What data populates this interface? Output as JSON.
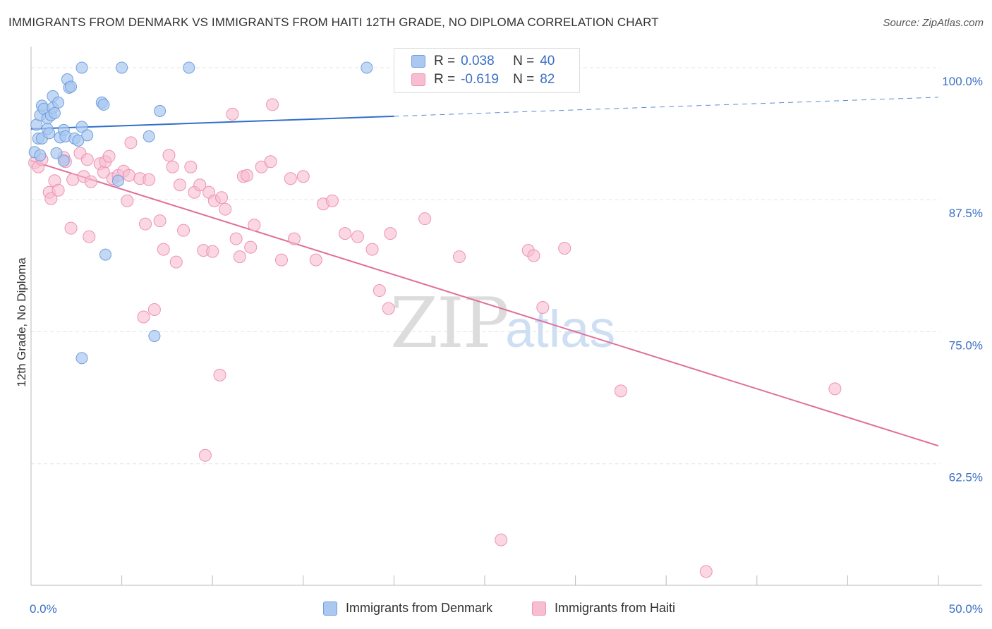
{
  "title": "IMMIGRANTS FROM DENMARK VS IMMIGRANTS FROM HAITI 12TH GRADE, NO DIPLOMA CORRELATION CHART",
  "source": "Source: ZipAtlas.com",
  "watermark": {
    "zip": "ZIP",
    "atlas": "atlas"
  },
  "legend": {
    "r_label": "R =",
    "n_label": "N =",
    "denmark": {
      "r": "0.038",
      "n": "40"
    },
    "haiti": {
      "r": "-0.619",
      "n": "82"
    }
  },
  "bottom_legend": {
    "denmark": "Immigrants from Denmark",
    "haiti": "Immigrants from Haiti"
  },
  "colors": {
    "denmark_fill": "#aac8f0",
    "denmark_stroke": "#6f9fde",
    "denmark_line": "#2f6fcc",
    "haiti_fill": "#f7bdd0",
    "haiti_stroke": "#ee93b3",
    "haiti_line": "#e06f9c",
    "axis_label": "#3a6fc4",
    "grid": "#e4e4e4"
  },
  "chart_data": {
    "type": "scatter",
    "title": "IMMIGRANTS FROM DENMARK VS IMMIGRANTS FROM HAITI 12TH GRADE, NO DIPLOMA CORRELATION CHART",
    "xlabel": "",
    "ylabel": "12th Grade, No Diploma",
    "xlim": [
      0,
      50
    ],
    "ylim": [
      51,
      102
    ],
    "x_tick_labels": [
      {
        "value": 0,
        "label": "0.0%"
      },
      {
        "value": 50,
        "label": "50.0%"
      }
    ],
    "x_minor_ticks": [
      5,
      10,
      15,
      20,
      25,
      30,
      35,
      40,
      45
    ],
    "y_ticks": [
      {
        "value": 100,
        "label": "100.0%"
      },
      {
        "value": 87.5,
        "label": "87.5%"
      },
      {
        "value": 75,
        "label": "75.0%"
      },
      {
        "value": 62.5,
        "label": "62.5%"
      }
    ],
    "series": [
      {
        "name": "Immigrants from Denmark",
        "r": 0.038,
        "n": 40,
        "trend": {
          "x0": 0,
          "y0": 94.2,
          "x1": 20,
          "y1": 95.4,
          "dashed_to_x": 50,
          "dashed_to_y": 97.2
        },
        "points": [
          [
            0.3,
            94.6
          ],
          [
            0.4,
            93.3
          ],
          [
            0.5,
            95.5
          ],
          [
            0.6,
            96.4
          ],
          [
            0.7,
            96.1
          ],
          [
            0.6,
            93.3
          ],
          [
            0.9,
            95.2
          ],
          [
            0.9,
            94.2
          ],
          [
            1.0,
            93.8
          ],
          [
            1.1,
            95.5
          ],
          [
            1.2,
            96.2
          ],
          [
            1.2,
            97.3
          ],
          [
            1.3,
            95.7
          ],
          [
            1.5,
            96.7
          ],
          [
            1.4,
            91.9
          ],
          [
            1.6,
            93.4
          ],
          [
            1.8,
            94.1
          ],
          [
            1.9,
            93.5
          ],
          [
            2.0,
            98.9
          ],
          [
            2.1,
            98.1
          ],
          [
            2.2,
            98.2
          ],
          [
            2.4,
            93.3
          ],
          [
            2.6,
            93.1
          ],
          [
            2.8,
            94.4
          ],
          [
            3.1,
            93.6
          ],
          [
            2.8,
            100.0
          ],
          [
            3.9,
            96.7
          ],
          [
            4.0,
            96.5
          ],
          [
            5.0,
            100.0
          ],
          [
            4.1,
            82.3
          ],
          [
            4.8,
            89.3
          ],
          [
            6.5,
            93.5
          ],
          [
            7.1,
            95.9
          ],
          [
            8.7,
            100.0
          ],
          [
            18.5,
            100.0
          ],
          [
            6.8,
            74.6
          ],
          [
            2.8,
            72.5
          ],
          [
            0.2,
            92.0
          ],
          [
            0.5,
            91.7
          ],
          [
            1.8,
            91.2
          ]
        ]
      },
      {
        "name": "Immigrants from Haiti",
        "r": -0.619,
        "n": 82,
        "trend": {
          "x0": 0,
          "y0": 91.2,
          "x1": 50,
          "y1": 64.2
        },
        "points": [
          [
            0.2,
            91.0
          ],
          [
            0.4,
            90.6
          ],
          [
            0.6,
            91.3
          ],
          [
            1.0,
            88.2
          ],
          [
            1.1,
            87.6
          ],
          [
            1.3,
            89.3
          ],
          [
            1.5,
            88.4
          ],
          [
            1.8,
            91.5
          ],
          [
            1.9,
            91.1
          ],
          [
            2.2,
            84.8
          ],
          [
            2.3,
            89.4
          ],
          [
            2.7,
            91.9
          ],
          [
            2.9,
            89.7
          ],
          [
            3.1,
            91.3
          ],
          [
            3.3,
            89.2
          ],
          [
            3.2,
            84.0
          ],
          [
            3.8,
            90.9
          ],
          [
            4.0,
            90.1
          ],
          [
            4.1,
            91.1
          ],
          [
            4.3,
            91.6
          ],
          [
            4.5,
            89.5
          ],
          [
            4.8,
            89.8
          ],
          [
            5.1,
            90.2
          ],
          [
            5.3,
            87.4
          ],
          [
            5.5,
            92.9
          ],
          [
            5.4,
            89.8
          ],
          [
            6.0,
            89.5
          ],
          [
            6.3,
            85.2
          ],
          [
            6.5,
            89.4
          ],
          [
            6.2,
            76.4
          ],
          [
            6.8,
            77.1
          ],
          [
            7.1,
            85.5
          ],
          [
            7.3,
            82.8
          ],
          [
            7.6,
            91.7
          ],
          [
            7.8,
            90.6
          ],
          [
            8.0,
            81.6
          ],
          [
            8.2,
            88.9
          ],
          [
            8.4,
            84.6
          ],
          [
            8.8,
            90.6
          ],
          [
            9.0,
            88.2
          ],
          [
            9.3,
            88.9
          ],
          [
            9.5,
            82.7
          ],
          [
            9.6,
            63.3
          ],
          [
            9.8,
            88.2
          ],
          [
            10.0,
            82.6
          ],
          [
            10.1,
            87.4
          ],
          [
            10.5,
            87.7
          ],
          [
            10.7,
            86.6
          ],
          [
            10.4,
            70.9
          ],
          [
            11.1,
            95.6
          ],
          [
            11.3,
            83.8
          ],
          [
            11.5,
            82.1
          ],
          [
            11.7,
            89.7
          ],
          [
            11.9,
            89.8
          ],
          [
            12.1,
            83.0
          ],
          [
            12.3,
            85.1
          ],
          [
            12.7,
            90.6
          ],
          [
            13.2,
            91.1
          ],
          [
            13.3,
            96.5
          ],
          [
            13.8,
            81.8
          ],
          [
            14.3,
            89.5
          ],
          [
            14.5,
            83.8
          ],
          [
            15.0,
            89.7
          ],
          [
            15.7,
            81.8
          ],
          [
            16.1,
            87.1
          ],
          [
            16.6,
            87.4
          ],
          [
            17.3,
            84.3
          ],
          [
            18.0,
            84.0
          ],
          [
            18.8,
            82.8
          ],
          [
            19.2,
            78.9
          ],
          [
            19.7,
            77.2
          ],
          [
            19.8,
            84.3
          ],
          [
            21.7,
            85.7
          ],
          [
            23.6,
            82.1
          ],
          [
            25.9,
            55.3
          ],
          [
            27.4,
            82.7
          ],
          [
            27.7,
            82.2
          ],
          [
            28.2,
            77.3
          ],
          [
            29.4,
            82.9
          ],
          [
            32.5,
            69.4
          ],
          [
            37.2,
            52.3
          ],
          [
            44.3,
            69.6
          ]
        ]
      }
    ]
  }
}
